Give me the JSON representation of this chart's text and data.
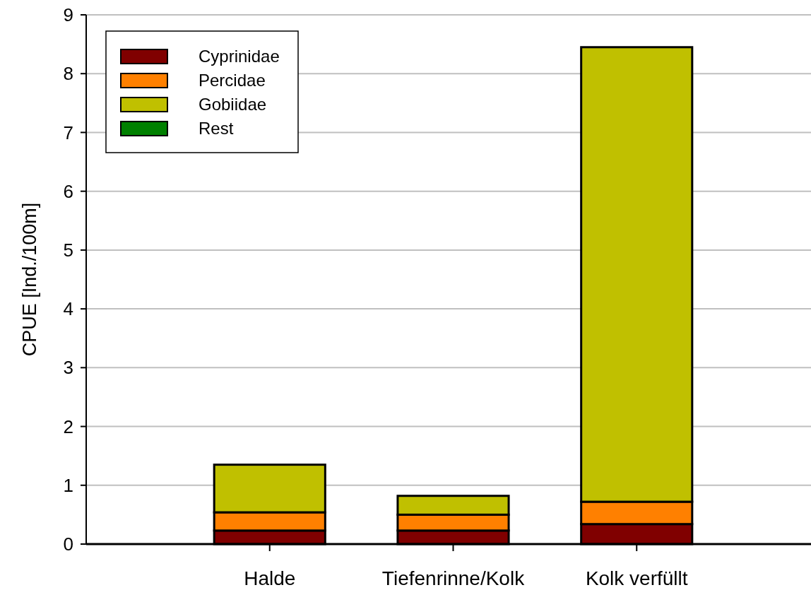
{
  "chart_data": {
    "type": "bar",
    "stacked": true,
    "ylabel": "CPUE [Ind./100m]",
    "categories": [
      null,
      "Halde",
      "Tiefenrinne/Kolk",
      "Kolk verfüllt"
    ],
    "series": [
      {
        "name": "Cyprinidae",
        "color": "#800000",
        "values": [
          null,
          0.23,
          0.23,
          0.34
        ]
      },
      {
        "name": "Percidae",
        "color": "#ff8000",
        "values": [
          null,
          0.31,
          0.27,
          0.38
        ]
      },
      {
        "name": "Gobiidae",
        "color": "#c0c000",
        "values": [
          null,
          0.81,
          0.32,
          7.73
        ]
      },
      {
        "name": "Rest",
        "color": "#008000",
        "values": [
          null,
          0,
          0,
          0
        ]
      }
    ],
    "ylim": [
      0,
      9
    ],
    "yticks": [
      0,
      1,
      2,
      3,
      4,
      5,
      6,
      7,
      8,
      9
    ],
    "grid": "y",
    "legend": "top left"
  }
}
